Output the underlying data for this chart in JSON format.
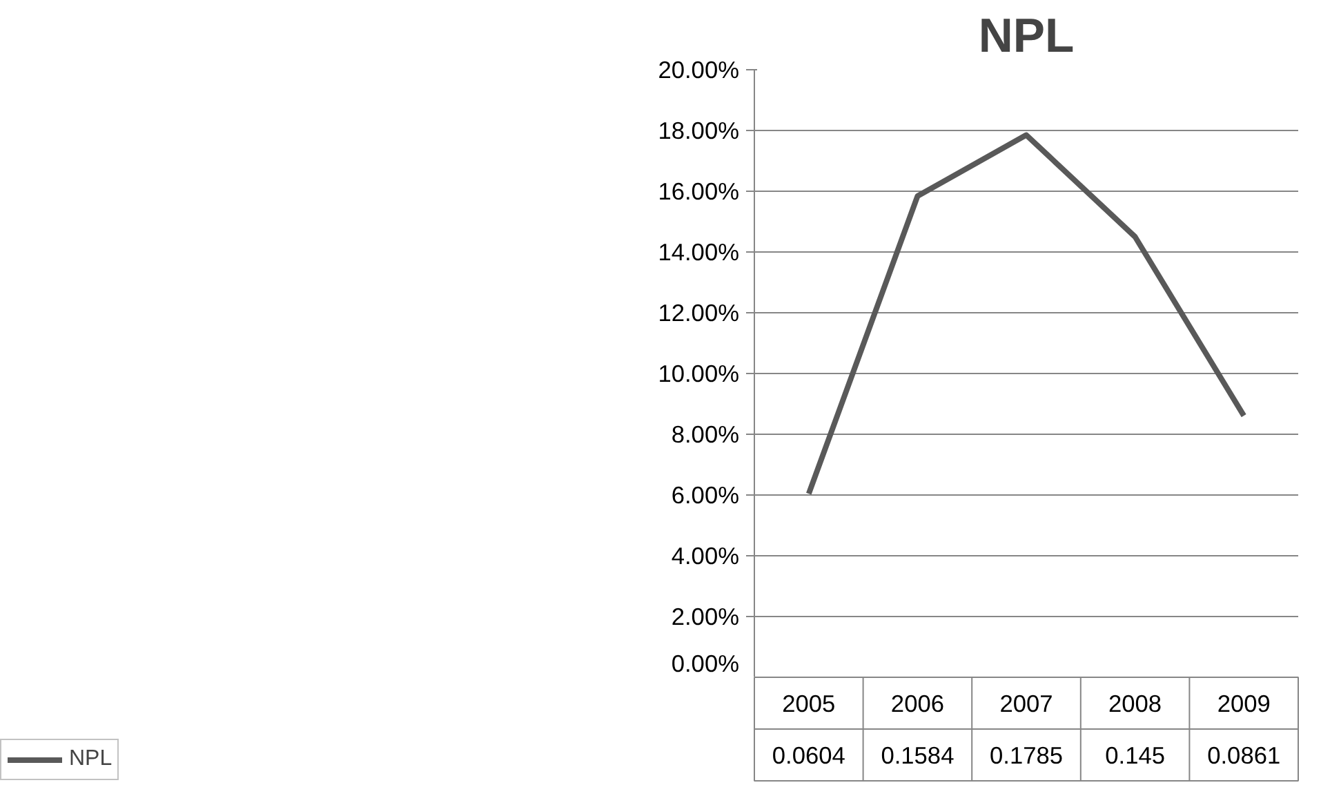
{
  "chart_data": {
    "type": "line",
    "title": "NPL",
    "categories": [
      "2005",
      "2006",
      "2007",
      "2008",
      "2009"
    ],
    "series": [
      {
        "name": "NPL",
        "color": "#595959",
        "values": [
          0.0604,
          0.1584,
          0.1785,
          0.145,
          0.0861
        ]
      }
    ],
    "ylim": [
      0,
      0.2
    ],
    "yticks": [
      {
        "value": 0,
        "label": "0.00%"
      },
      {
        "value": 0.02,
        "label": "2.00%"
      },
      {
        "value": 0.04,
        "label": "4.00%"
      },
      {
        "value": 0.06,
        "label": "6.00%"
      },
      {
        "value": 0.08,
        "label": "8.00%"
      },
      {
        "value": 0.1,
        "label": "10.00%"
      },
      {
        "value": 0.12,
        "label": "12.00%"
      },
      {
        "value": 0.14,
        "label": "14.00%"
      },
      {
        "value": 0.16,
        "label": "16.00%"
      },
      {
        "value": 0.18,
        "label": "18.00%"
      },
      {
        "value": 0.2,
        "label": "20.00%"
      }
    ],
    "grid": "y",
    "legend": "bottom",
    "data_labels": true,
    "marker": "none",
    "line_style": "solid"
  }
}
